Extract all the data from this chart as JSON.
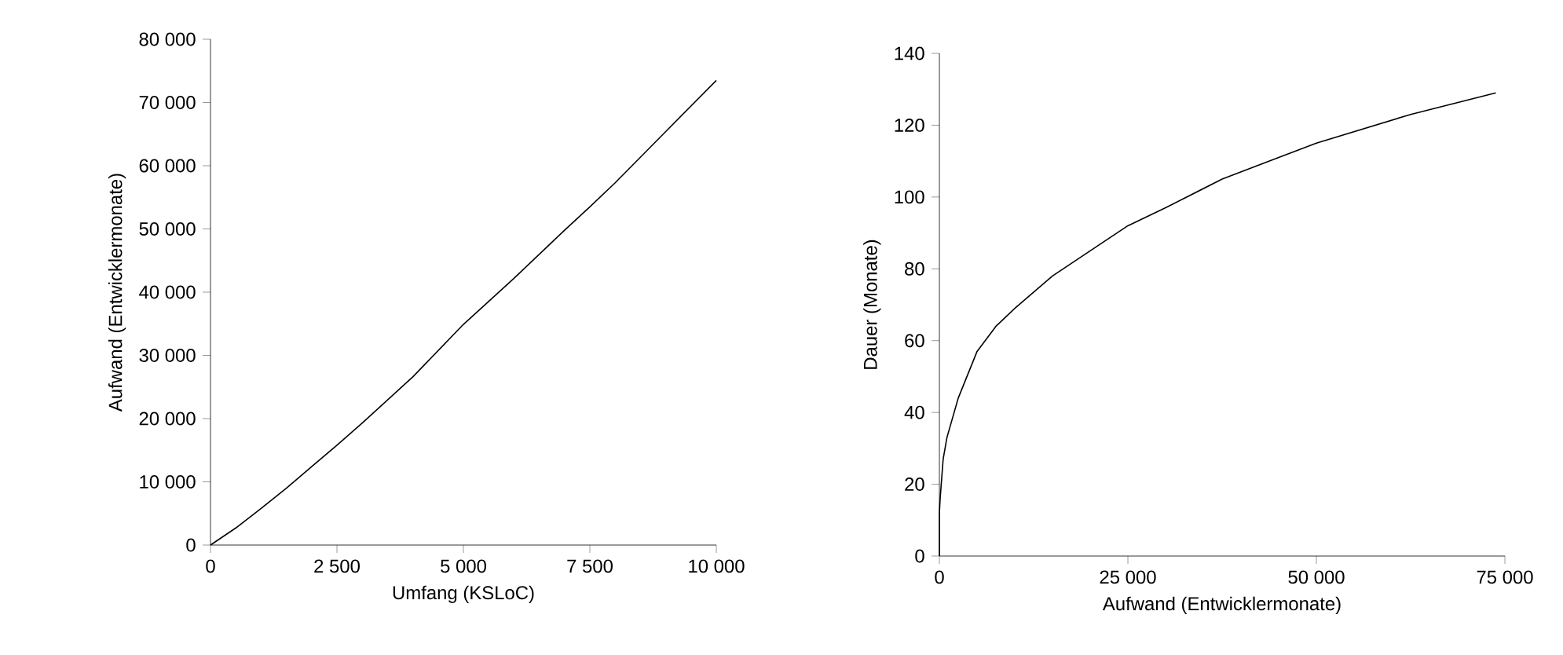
{
  "chart_data": [
    {
      "type": "line",
      "xlabel": "Umfang (KSLoC)",
      "ylabel": "Aufwand (Entwicklermonate)",
      "color": "#000000",
      "x": [
        0,
        500,
        1000,
        1500,
        2000,
        2500,
        3000,
        4000,
        5000,
        6000,
        7000,
        7500,
        8000,
        9000,
        10000
      ],
      "values": [
        0,
        2700,
        5800,
        9000,
        12400,
        15800,
        19300,
        26600,
        34900,
        42200,
        49800,
        53500,
        57300,
        65400,
        73500
      ],
      "xlim": [
        0,
        10000
      ],
      "ylim": [
        0,
        80000
      ],
      "xticks": [
        0,
        {
          "value": 2500,
          "label": "2 500"
        },
        {
          "value": 5000,
          "label": "5 000"
        },
        {
          "value": 7500,
          "label": "7 500"
        },
        {
          "value": 10000,
          "label": "10 000"
        }
      ],
      "yticks": [
        0,
        {
          "value": 10000,
          "label": "10 000"
        },
        {
          "value": 20000,
          "label": "20 000"
        },
        {
          "value": 30000,
          "label": "30 000"
        },
        {
          "value": 40000,
          "label": "40 000"
        },
        {
          "value": 50000,
          "label": "50 000"
        },
        {
          "value": 60000,
          "label": "60 000"
        },
        {
          "value": 70000,
          "label": "70 000"
        },
        {
          "value": 80000,
          "label": "80 000"
        }
      ]
    },
    {
      "type": "line",
      "xlabel": "Aufwand (Entwicklermonate)",
      "ylabel": "Dauer (Monate)",
      "color": "#000000",
      "x": [
        0,
        0,
        100,
        500,
        1000,
        2500,
        5000,
        7500,
        10000,
        15000,
        20000,
        25000,
        30000,
        37500,
        45000,
        50000,
        62500,
        73800
      ],
      "values": [
        0,
        12,
        16,
        27,
        33,
        44,
        57,
        64,
        69,
        78,
        85,
        92,
        97,
        105,
        111,
        115,
        123,
        129
      ],
      "xlim": [
        0,
        75000
      ],
      "ylim": [
        0,
        140
      ],
      "xticks": [
        0,
        {
          "value": 25000,
          "label": "25 000"
        },
        {
          "value": 50000,
          "label": "50 000"
        },
        {
          "value": 75000,
          "label": "75 000"
        }
      ],
      "yticks": [
        0,
        20,
        40,
        60,
        80,
        100,
        120,
        140
      ]
    }
  ]
}
